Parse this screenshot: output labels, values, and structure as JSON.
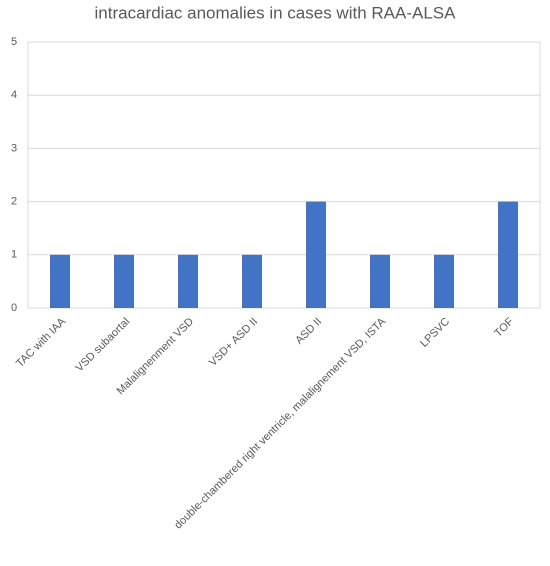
{
  "chart_data": {
    "type": "bar",
    "title": "intracardiac anomalies in cases with RAA-ALSA",
    "categories": [
      "TAC with IAA",
      "VSD subaortal",
      "Malalignenment VSD",
      "VSD+ ASD II",
      "ASD II",
      "double-chambered right ventricle, malalignement VSD, ISTA",
      "LPSVC",
      "TOF"
    ],
    "values": [
      1,
      1,
      1,
      1,
      2,
      1,
      1,
      2
    ],
    "color": "#4472c4",
    "ylim": [
      0,
      5
    ],
    "yticks": [
      0,
      1,
      2,
      3,
      4,
      5
    ],
    "grid": true
  }
}
